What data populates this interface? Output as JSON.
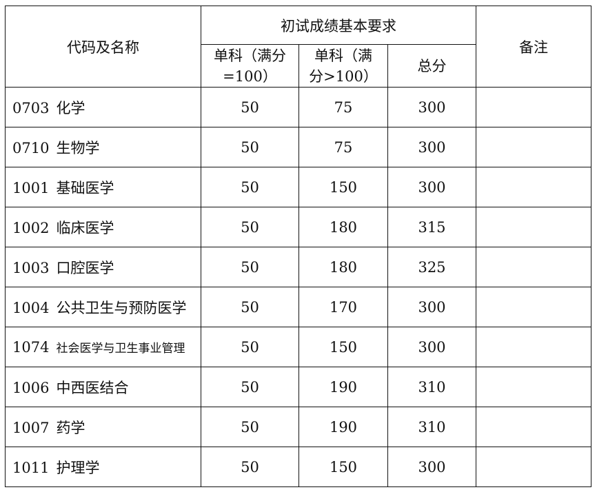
{
  "header": {
    "col_name": "代码及名称",
    "group": "初试成绩基本要求",
    "col_single_100": "单科（满分=100）",
    "col_single_gt100": "单科（满分>100）",
    "col_total": "总分",
    "col_note": "备注"
  },
  "rows": [
    {
      "code": "0703",
      "name": "化学",
      "s100": "50",
      "sgt100": "75",
      "total": "300",
      "note": ""
    },
    {
      "code": "0710",
      "name": "生物学",
      "s100": "50",
      "sgt100": "75",
      "total": "300",
      "note": ""
    },
    {
      "code": "1001",
      "name": "基础医学",
      "s100": "50",
      "sgt100": "150",
      "total": "300",
      "note": ""
    },
    {
      "code": "1002",
      "name": "临床医学",
      "s100": "50",
      "sgt100": "180",
      "total": "315",
      "note": ""
    },
    {
      "code": "1003",
      "name": "口腔医学",
      "s100": "50",
      "sgt100": "180",
      "total": "325",
      "note": ""
    },
    {
      "code": "1004",
      "name": "公共卫生与预防医学",
      "s100": "50",
      "sgt100": "170",
      "total": "300",
      "note": ""
    },
    {
      "code": "1074",
      "name": "社会医学与卫生事业管理",
      "s100": "50",
      "sgt100": "150",
      "total": "300",
      "note": ""
    },
    {
      "code": "1006",
      "name": "中西医结合",
      "s100": "50",
      "sgt100": "190",
      "total": "310",
      "note": ""
    },
    {
      "code": "1007",
      "name": "药学",
      "s100": "50",
      "sgt100": "190",
      "total": "310",
      "note": ""
    },
    {
      "code": "1011",
      "name": "护理学",
      "s100": "50",
      "sgt100": "150",
      "total": "300",
      "note": ""
    }
  ]
}
